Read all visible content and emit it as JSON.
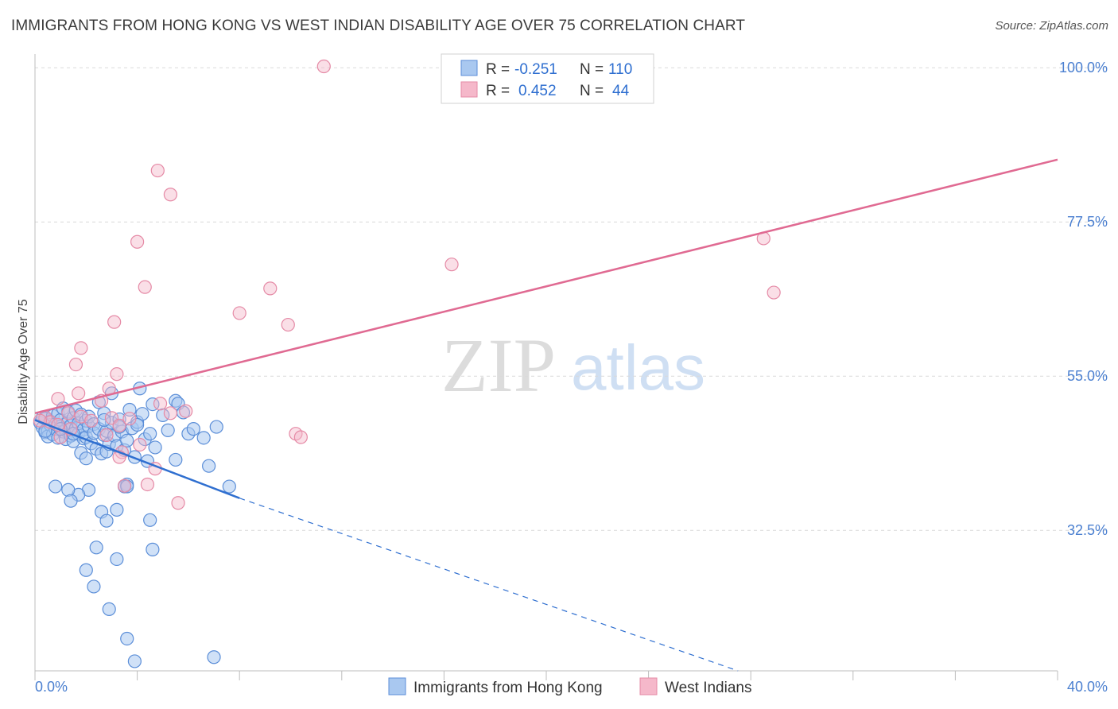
{
  "title": "IMMIGRANTS FROM HONG KONG VS WEST INDIAN DISABILITY AGE OVER 75 CORRELATION CHART",
  "source": "Source: ZipAtlas.com",
  "watermark": {
    "zip": "ZIP",
    "atlas": "atlas"
  },
  "colors": {
    "blue_fill": "#a9c8f0",
    "blue_stroke": "#5b8ed8",
    "blue_line": "#2f6fd0",
    "pink_fill": "#f5b8ca",
    "pink_stroke": "#e58aa6",
    "pink_line": "#e06a92",
    "tick_label": "#4a7fd0",
    "grid": "#d9d9d9"
  },
  "legend": {
    "row1": {
      "r_label": "R =",
      "r_value": "-0.251",
      "n_label": "N =",
      "n_value": "110"
    },
    "row2": {
      "r_label": "R =",
      "r_value": "0.452",
      "n_label": "N =",
      "n_value": "44"
    }
  },
  "chart_data": {
    "type": "scatter",
    "title": "IMMIGRANTS FROM HONG KONG VS WEST INDIAN DISABILITY AGE OVER 75 CORRELATION CHART",
    "xlabel": "",
    "ylabel": "Disability Age Over 75",
    "xlim": [
      0,
      40
    ],
    "ylim": [
      12,
      102
    ],
    "x_tick_labels": [
      "0.0%",
      "40.0%"
    ],
    "y_ticks": [
      32.5,
      55.0,
      77.5,
      100.0
    ],
    "y_tick_labels": [
      "32.5%",
      "55.0%",
      "77.5%",
      "100.0%"
    ],
    "grid": true,
    "legend_position": "bottom",
    "series": [
      {
        "name": "Immigrants from Hong Kong",
        "color": "#a9c8f0",
        "R": -0.251,
        "N": 110,
        "trend": {
          "x0": 0,
          "y0": 48.6,
          "x1": 8.0,
          "y1": 37.2,
          "dash_to_x": 27.5,
          "dash_to_y": 12.0
        },
        "points": [
          [
            0.2,
            48.2
          ],
          [
            0.3,
            47.5
          ],
          [
            0.3,
            49.0
          ],
          [
            0.4,
            46.8
          ],
          [
            0.4,
            48.8
          ],
          [
            0.5,
            47.0
          ],
          [
            0.5,
            46.2
          ],
          [
            0.6,
            48.4
          ],
          [
            0.6,
            47.9
          ],
          [
            0.7,
            46.5
          ],
          [
            0.7,
            49.2
          ],
          [
            0.8,
            47.3
          ],
          [
            0.8,
            48.0
          ],
          [
            0.9,
            46.0
          ],
          [
            0.9,
            49.5
          ],
          [
            1.0,
            47.6
          ],
          [
            1.0,
            48.6
          ],
          [
            1.1,
            46.9
          ],
          [
            1.1,
            50.3
          ],
          [
            1.2,
            47.1
          ],
          [
            1.2,
            45.8
          ],
          [
            1.3,
            48.3
          ],
          [
            1.3,
            49.8
          ],
          [
            1.4,
            46.3
          ],
          [
            1.4,
            47.8
          ],
          [
            1.5,
            48.9
          ],
          [
            1.5,
            45.5
          ],
          [
            1.6,
            47.4
          ],
          [
            1.6,
            50.0
          ],
          [
            1.7,
            46.6
          ],
          [
            1.7,
            48.1
          ],
          [
            1.8,
            49.4
          ],
          [
            1.9,
            47.2
          ],
          [
            1.9,
            45.9
          ],
          [
            2.0,
            48.5
          ],
          [
            2.0,
            46.1
          ],
          [
            2.1,
            47.7
          ],
          [
            2.1,
            49.1
          ],
          [
            2.2,
            45.2
          ],
          [
            2.3,
            48.0
          ],
          [
            2.3,
            46.7
          ],
          [
            2.4,
            44.4
          ],
          [
            2.5,
            47.3
          ],
          [
            2.5,
            51.2
          ],
          [
            2.6,
            43.7
          ],
          [
            2.7,
            46.4
          ],
          [
            2.7,
            49.6
          ],
          [
            2.8,
            47.0
          ],
          [
            2.8,
            44.0
          ],
          [
            2.9,
            45.1
          ],
          [
            3.0,
            48.2
          ],
          [
            3.0,
            52.5
          ],
          [
            3.1,
            46.3
          ],
          [
            3.2,
            44.8
          ],
          [
            3.3,
            48.7
          ],
          [
            3.4,
            46.9
          ],
          [
            3.5,
            44.2
          ],
          [
            3.6,
            45.6
          ],
          [
            3.7,
            50.1
          ],
          [
            3.8,
            47.4
          ],
          [
            3.9,
            43.2
          ],
          [
            4.0,
            48.3
          ],
          [
            4.1,
            53.2
          ],
          [
            4.2,
            49.5
          ],
          [
            4.3,
            45.8
          ],
          [
            4.4,
            42.6
          ],
          [
            4.5,
            46.6
          ],
          [
            4.6,
            50.9
          ],
          [
            4.7,
            44.6
          ],
          [
            5.0,
            49.3
          ],
          [
            5.2,
            47.1
          ],
          [
            5.5,
            51.4
          ],
          [
            5.6,
            51.0
          ],
          [
            5.8,
            49.7
          ],
          [
            6.0,
            46.6
          ],
          [
            6.2,
            47.3
          ],
          [
            6.6,
            46.0
          ],
          [
            6.8,
            41.9
          ],
          [
            7.1,
            47.6
          ],
          [
            7.6,
            38.9
          ],
          [
            1.8,
            43.8
          ],
          [
            2.0,
            43.0
          ],
          [
            3.6,
            39.2
          ],
          [
            5.5,
            42.8
          ],
          [
            3.5,
            38.9
          ],
          [
            2.1,
            38.4
          ],
          [
            1.7,
            37.7
          ],
          [
            1.3,
            38.4
          ],
          [
            0.8,
            38.9
          ],
          [
            1.4,
            36.8
          ],
          [
            3.2,
            35.5
          ],
          [
            2.6,
            35.2
          ],
          [
            2.8,
            33.9
          ],
          [
            4.5,
            34.0
          ],
          [
            2.4,
            30.0
          ],
          [
            4.6,
            29.7
          ],
          [
            3.2,
            28.3
          ],
          [
            2.0,
            26.7
          ],
          [
            2.3,
            24.3
          ],
          [
            2.9,
            21.0
          ],
          [
            3.6,
            16.7
          ],
          [
            3.9,
            13.4
          ],
          [
            7.0,
            14.0
          ],
          [
            3.6,
            38.9
          ],
          [
            1.0,
            47.3
          ],
          [
            1.5,
            46.6
          ],
          [
            4.0,
            47.9
          ],
          [
            2.7,
            48.6
          ],
          [
            3.3,
            47.6
          ],
          [
            0.4,
            47.0
          ]
        ]
      },
      {
        "name": "West Indians",
        "color": "#f5b8ca",
        "R": 0.452,
        "N": 44,
        "trend": {
          "x0": 0,
          "y0": 49.6,
          "x1": 40.0,
          "y1": 86.6
        },
        "points": [
          [
            11.3,
            100.2
          ],
          [
            4.8,
            85.0
          ],
          [
            5.3,
            81.5
          ],
          [
            4.0,
            74.6
          ],
          [
            16.3,
            71.3
          ],
          [
            28.5,
            75.1
          ],
          [
            28.9,
            67.2
          ],
          [
            4.3,
            68.0
          ],
          [
            9.2,
            67.8
          ],
          [
            8.0,
            64.2
          ],
          [
            3.1,
            62.9
          ],
          [
            9.9,
            62.5
          ],
          [
            1.8,
            59.1
          ],
          [
            1.6,
            56.7
          ],
          [
            3.2,
            55.3
          ],
          [
            2.9,
            53.2
          ],
          [
            1.7,
            52.5
          ],
          [
            0.9,
            51.7
          ],
          [
            2.6,
            51.4
          ],
          [
            4.9,
            51.0
          ],
          [
            5.9,
            49.9
          ],
          [
            1.3,
            49.6
          ],
          [
            0.4,
            49.0
          ],
          [
            0.6,
            48.3
          ],
          [
            0.9,
            47.9
          ],
          [
            1.8,
            49.1
          ],
          [
            2.2,
            48.5
          ],
          [
            3.0,
            48.9
          ],
          [
            3.3,
            47.8
          ],
          [
            3.7,
            48.8
          ],
          [
            0.2,
            48.5
          ],
          [
            1.4,
            47.3
          ],
          [
            2.8,
            46.4
          ],
          [
            1.0,
            46.1
          ],
          [
            4.1,
            45.0
          ],
          [
            3.4,
            43.9
          ],
          [
            3.3,
            43.2
          ],
          [
            4.7,
            41.5
          ],
          [
            4.4,
            39.2
          ],
          [
            3.5,
            39.0
          ],
          [
            5.6,
            36.5
          ],
          [
            10.2,
            46.6
          ],
          [
            10.4,
            46.1
          ],
          [
            5.3,
            49.6
          ]
        ]
      }
    ]
  }
}
